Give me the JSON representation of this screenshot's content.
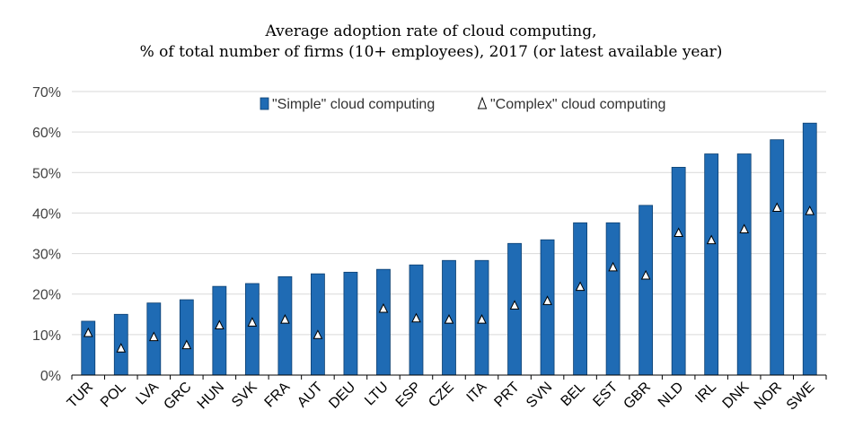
{
  "chart_data": {
    "type": "bar",
    "title": "Average adoption rate of cloud computing,",
    "subtitle": "% of total number of firms (10+ employees), 2017 (or latest available year)",
    "xlabel": "",
    "ylabel": "",
    "ylim": [
      0,
      70
    ],
    "yticks": [
      0,
      10,
      20,
      30,
      40,
      50,
      60,
      70
    ],
    "ytick_labels": [
      "0%",
      "10%",
      "20%",
      "30%",
      "40%",
      "50%",
      "60%",
      "70%"
    ],
    "grid": true,
    "legend_position": "top-center",
    "categories": [
      "TUR",
      "POL",
      "LVA",
      "GRC",
      "HUN",
      "SVK",
      "FRA",
      "AUT",
      "DEU",
      "LTU",
      "ESP",
      "CZE",
      "ITA",
      "PRT",
      "SVN",
      "BEL",
      "EST",
      "GBR",
      "NLD",
      "IRL",
      "DNK",
      "NOR",
      "SWE"
    ],
    "series": [
      {
        "name": "\"Simple\" cloud computing",
        "marker": "bar",
        "color": "#1f6bb4",
        "values": [
          13.3,
          15.0,
          17.8,
          18.6,
          21.9,
          22.6,
          24.3,
          25.0,
          25.4,
          26.1,
          27.2,
          28.3,
          28.3,
          32.5,
          33.4,
          37.6,
          37.6,
          41.9,
          51.3,
          54.6,
          54.6,
          58.1,
          62.2
        ]
      },
      {
        "name": "\"Complex\" cloud computing",
        "marker": "triangle",
        "color": "#ffffff",
        "values": [
          10.4,
          6.6,
          9.4,
          7.4,
          12.3,
          13.0,
          13.7,
          9.9,
          null,
          16.4,
          14.0,
          13.7,
          13.7,
          17.2,
          18.3,
          21.8,
          26.6,
          24.6,
          35.1,
          33.3,
          36.0,
          41.3,
          40.5
        ]
      }
    ]
  }
}
